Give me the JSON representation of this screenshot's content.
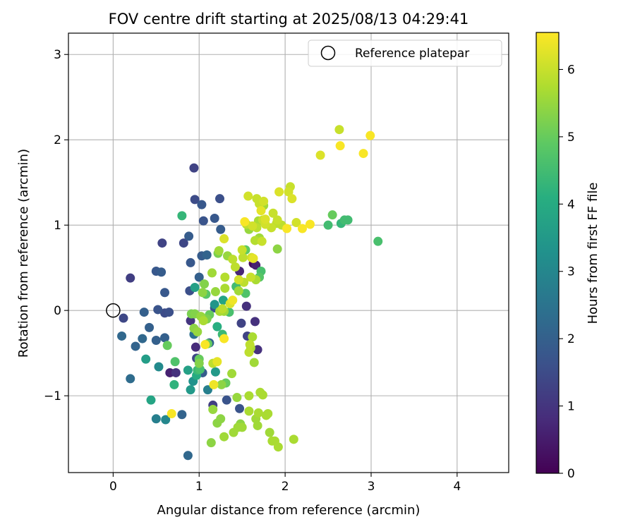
{
  "chart_data": {
    "type": "scatter",
    "title": "FOV centre drift starting at 2025/08/13 04:29:41",
    "xlabel": "Angular distance from reference (arcmin)",
    "ylabel": "Rotation from reference (arcmin)",
    "xlim": [
      -0.52,
      4.6
    ],
    "ylim": [
      -1.9,
      3.25
    ],
    "xticks": [
      0,
      1,
      2,
      3,
      4
    ],
    "yticks": [
      -1,
      0,
      1,
      2,
      3
    ],
    "grid": true,
    "legend": {
      "placement": "top-right",
      "entries": [
        "Reference platepar"
      ]
    },
    "reference_point": {
      "x": 0,
      "y": 0
    },
    "colorbar": {
      "label": "Hours from first FF file",
      "colormap": "viridis",
      "range": [
        0,
        6.55
      ],
      "ticks": [
        0,
        1,
        2,
        3,
        4,
        5,
        6
      ]
    },
    "points": [
      {
        "x": 0.12,
        "y": -0.09,
        "h": 1.4
      },
      {
        "x": 0.1,
        "y": -0.3,
        "h": 2.2
      },
      {
        "x": 0.2,
        "y": 0.38,
        "h": 1.2
      },
      {
        "x": 0.2,
        "y": -0.8,
        "h": 2.3
      },
      {
        "x": 0.26,
        "y": -0.42,
        "h": 2.1
      },
      {
        "x": 0.34,
        "y": -0.33,
        "h": 2.2
      },
      {
        "x": 0.36,
        "y": -0.02,
        "h": 2.0
      },
      {
        "x": 0.38,
        "y": -0.57,
        "h": 3.6
      },
      {
        "x": 0.42,
        "y": -0.2,
        "h": 2.0
      },
      {
        "x": 0.44,
        "y": -1.05,
        "h": 3.8
      },
      {
        "x": 0.5,
        "y": 0.46,
        "h": 1.8
      },
      {
        "x": 0.5,
        "y": -0.35,
        "h": 2.0
      },
      {
        "x": 0.5,
        "y": -1.27,
        "h": 2.8
      },
      {
        "x": 0.52,
        "y": 0.01,
        "h": 1.7
      },
      {
        "x": 0.53,
        "y": -0.66,
        "h": 3.1
      },
      {
        "x": 0.56,
        "y": 0.45,
        "h": 1.9
      },
      {
        "x": 0.57,
        "y": 0.79,
        "h": 1.3
      },
      {
        "x": 0.6,
        "y": 0.21,
        "h": 1.8
      },
      {
        "x": 0.6,
        "y": -0.03,
        "h": 1.5
      },
      {
        "x": 0.6,
        "y": -0.32,
        "h": 2.0
      },
      {
        "x": 0.61,
        "y": -1.28,
        "h": 3.0
      },
      {
        "x": 0.63,
        "y": -0.41,
        "h": 5.0
      },
      {
        "x": 0.65,
        "y": -0.02,
        "h": 1.6
      },
      {
        "x": 0.66,
        "y": -0.73,
        "h": 0.6
      },
      {
        "x": 0.68,
        "y": -1.21,
        "h": 6.5
      },
      {
        "x": 0.71,
        "y": -0.87,
        "h": 4.2
      },
      {
        "x": 0.72,
        "y": -0.6,
        "h": 4.7
      },
      {
        "x": 0.73,
        "y": -0.73,
        "h": 0.9
      },
      {
        "x": 0.8,
        "y": -1.22,
        "h": 2.1
      },
      {
        "x": 0.8,
        "y": 1.11,
        "h": 4.3
      },
      {
        "x": 0.82,
        "y": 0.79,
        "h": 1.4
      },
      {
        "x": 0.87,
        "y": -1.7,
        "h": 2.2
      },
      {
        "x": 0.87,
        "y": -0.7,
        "h": 3.7
      },
      {
        "x": 0.88,
        "y": 0.87,
        "h": 1.9
      },
      {
        "x": 0.89,
        "y": 0.23,
        "h": 1.6
      },
      {
        "x": 0.9,
        "y": 0.56,
        "h": 1.8
      },
      {
        "x": 0.9,
        "y": -0.93,
        "h": 3.5
      },
      {
        "x": 0.9,
        "y": -0.12,
        "h": 1.0
      },
      {
        "x": 0.91,
        "y": -0.04,
        "h": 5.2
      },
      {
        "x": 0.93,
        "y": -0.83,
        "h": 3.3
      },
      {
        "x": 0.94,
        "y": 1.67,
        "h": 1.3
      },
      {
        "x": 0.94,
        "y": -0.28,
        "h": 2.4
      },
      {
        "x": 0.94,
        "y": -0.21,
        "h": 5.4
      },
      {
        "x": 0.95,
        "y": -0.04,
        "h": 5.3
      },
      {
        "x": 0.95,
        "y": 0.27,
        "h": 3.7
      },
      {
        "x": 0.95,
        "y": 1.3,
        "h": 1.5
      },
      {
        "x": 0.96,
        "y": -0.43,
        "h": 0.8
      },
      {
        "x": 0.97,
        "y": -0.76,
        "h": 4.0
      },
      {
        "x": 0.97,
        "y": -0.56,
        "h": 1.4
      },
      {
        "x": 0.98,
        "y": -0.7,
        "h": 4.4
      },
      {
        "x": 0.98,
        "y": -0.25,
        "h": 5.5
      },
      {
        "x": 1.0,
        "y": 0.39,
        "h": 2.0
      },
      {
        "x": 1.0,
        "y": -0.62,
        "h": 5.3
      },
      {
        "x": 1.0,
        "y": -0.57,
        "h": 5.0
      },
      {
        "x": 1.01,
        "y": -0.69,
        "h": 4.6
      },
      {
        "x": 1.02,
        "y": -0.07,
        "h": 5.5
      },
      {
        "x": 1.03,
        "y": 1.24,
        "h": 1.8
      },
      {
        "x": 1.03,
        "y": 0.64,
        "h": 1.9
      },
      {
        "x": 1.04,
        "y": -0.73,
        "h": 1.9
      },
      {
        "x": 1.04,
        "y": 0.21,
        "h": 5.4
      },
      {
        "x": 1.05,
        "y": -0.12,
        "h": 5.7
      },
      {
        "x": 1.05,
        "y": 1.05,
        "h": 1.7
      },
      {
        "x": 1.06,
        "y": 0.31,
        "h": 5.3
      },
      {
        "x": 1.07,
        "y": -0.4,
        "h": 6.5
      },
      {
        "x": 1.08,
        "y": 0.19,
        "h": 4.8
      },
      {
        "x": 1.09,
        "y": -0.1,
        "h": 5.2
      },
      {
        "x": 1.09,
        "y": 0.65,
        "h": 2.1
      },
      {
        "x": 1.1,
        "y": -0.93,
        "h": 2.8
      },
      {
        "x": 1.1,
        "y": -0.39,
        "h": 5.0
      },
      {
        "x": 1.12,
        "y": -0.38,
        "h": 2.1
      },
      {
        "x": 1.12,
        "y": -0.05,
        "h": 5.0
      },
      {
        "x": 1.14,
        "y": -1.55,
        "h": 5.4
      },
      {
        "x": 1.15,
        "y": 0.44,
        "h": 5.6
      },
      {
        "x": 1.16,
        "y": -0.62,
        "h": 5.9
      },
      {
        "x": 1.16,
        "y": -1.11,
        "h": 1.2
      },
      {
        "x": 1.16,
        "y": -1.16,
        "h": 5.5
      },
      {
        "x": 1.17,
        "y": -0.87,
        "h": 6.4
      },
      {
        "x": 1.18,
        "y": 1.08,
        "h": 1.8
      },
      {
        "x": 1.18,
        "y": 0.03,
        "h": 1.7
      },
      {
        "x": 1.18,
        "y": 0.07,
        "h": 3.4
      },
      {
        "x": 1.19,
        "y": -0.72,
        "h": 3.5
      },
      {
        "x": 1.19,
        "y": 0.22,
        "h": 5.5
      },
      {
        "x": 1.21,
        "y": -0.6,
        "h": 6.3
      },
      {
        "x": 1.21,
        "y": -0.19,
        "h": 4.1
      },
      {
        "x": 1.21,
        "y": -1.32,
        "h": 5.4
      },
      {
        "x": 1.22,
        "y": 0.67,
        "h": 5.2
      },
      {
        "x": 1.23,
        "y": 0.7,
        "h": 5.6
      },
      {
        "x": 1.24,
        "y": 1.31,
        "h": 1.6
      },
      {
        "x": 1.24,
        "y": -0.01,
        "h": 5.7
      },
      {
        "x": 1.25,
        "y": 0.95,
        "h": 1.9
      },
      {
        "x": 1.25,
        "y": -1.27,
        "h": 5.4
      },
      {
        "x": 1.26,
        "y": -0.87,
        "h": 5.4
      },
      {
        "x": 1.27,
        "y": -0.28,
        "h": 4.4
      },
      {
        "x": 1.27,
        "y": 0.02,
        "h": 5.9
      },
      {
        "x": 1.28,
        "y": 0.12,
        "h": 3.8
      },
      {
        "x": 1.29,
        "y": 0.84,
        "h": 6.2
      },
      {
        "x": 1.29,
        "y": -1.48,
        "h": 5.6
      },
      {
        "x": 1.29,
        "y": -0.01,
        "h": 5.6
      },
      {
        "x": 1.29,
        "y": -0.33,
        "h": 6.5
      },
      {
        "x": 1.3,
        "y": 0.39,
        "h": 5.8
      },
      {
        "x": 1.3,
        "y": 0.26,
        "h": 5.7
      },
      {
        "x": 1.31,
        "y": -0.85,
        "h": 5.0
      },
      {
        "x": 1.32,
        "y": -1.05,
        "h": 1.7
      },
      {
        "x": 1.33,
        "y": 0.64,
        "h": 5.5
      },
      {
        "x": 1.35,
        "y": -0.02,
        "h": 4.6
      },
      {
        "x": 1.36,
        "y": 0.08,
        "h": 6.2
      },
      {
        "x": 1.38,
        "y": -0.74,
        "h": 5.6
      },
      {
        "x": 1.39,
        "y": 0.6,
        "h": 5.9
      },
      {
        "x": 1.39,
        "y": 0.12,
        "h": 6.4
      },
      {
        "x": 1.4,
        "y": -1.43,
        "h": 5.6
      },
      {
        "x": 1.42,
        "y": 0.51,
        "h": 5.9
      },
      {
        "x": 1.43,
        "y": 0.28,
        "h": 4.5
      },
      {
        "x": 1.44,
        "y": -1.02,
        "h": 5.5
      },
      {
        "x": 1.45,
        "y": -1.37,
        "h": 5.6
      },
      {
        "x": 1.46,
        "y": 0.36,
        "h": 6.1
      },
      {
        "x": 1.46,
        "y": 0.23,
        "h": 5.6
      },
      {
        "x": 1.47,
        "y": -1.15,
        "h": 1.7
      },
      {
        "x": 1.47,
        "y": 0.46,
        "h": 0.7
      },
      {
        "x": 1.48,
        "y": -1.33,
        "h": 5.4
      },
      {
        "x": 1.49,
        "y": -0.15,
        "h": 1.3
      },
      {
        "x": 1.5,
        "y": -1.37,
        "h": 5.6
      },
      {
        "x": 1.5,
        "y": 0.71,
        "h": 6.0
      },
      {
        "x": 1.51,
        "y": 0.62,
        "h": 5.9
      },
      {
        "x": 1.52,
        "y": 0.33,
        "h": 5.9
      },
      {
        "x": 1.53,
        "y": 1.04,
        "h": 6.5
      },
      {
        "x": 1.54,
        "y": 0.71,
        "h": 4.9
      },
      {
        "x": 1.54,
        "y": 0.2,
        "h": 4.7
      },
      {
        "x": 1.55,
        "y": 1.01,
        "h": 5.9
      },
      {
        "x": 1.55,
        "y": 0.05,
        "h": 0.9
      },
      {
        "x": 1.56,
        "y": -0.3,
        "h": 1.3
      },
      {
        "x": 1.57,
        "y": 1.34,
        "h": 6.1
      },
      {
        "x": 1.58,
        "y": 0.95,
        "h": 5.5
      },
      {
        "x": 1.58,
        "y": -0.49,
        "h": 5.9
      },
      {
        "x": 1.58,
        "y": -1.0,
        "h": 5.7
      },
      {
        "x": 1.58,
        "y": -1.18,
        "h": 5.7
      },
      {
        "x": 1.59,
        "y": -0.4,
        "h": 5.9
      },
      {
        "x": 1.6,
        "y": 0.39,
        "h": 6.0
      },
      {
        "x": 1.6,
        "y": -0.44,
        "h": 5.7
      },
      {
        "x": 1.61,
        "y": 0.62,
        "h": 6.1
      },
      {
        "x": 1.62,
        "y": 0.99,
        "h": 6.1
      },
      {
        "x": 1.62,
        "y": -0.31,
        "h": 5.7
      },
      {
        "x": 1.63,
        "y": 0.55,
        "h": 0.2
      },
      {
        "x": 1.63,
        "y": 0.61,
        "h": 6.3
      },
      {
        "x": 1.64,
        "y": -0.61,
        "h": 5.6
      },
      {
        "x": 1.65,
        "y": -0.13,
        "h": 0.9
      },
      {
        "x": 1.65,
        "y": 0.82,
        "h": 5.8
      },
      {
        "x": 1.66,
        "y": 0.36,
        "h": 5.7
      },
      {
        "x": 1.66,
        "y": -1.27,
        "h": 5.6
      },
      {
        "x": 1.66,
        "y": 0.53,
        "h": 0.6
      },
      {
        "x": 1.67,
        "y": 1.31,
        "h": 6.0
      },
      {
        "x": 1.67,
        "y": 0.97,
        "h": 5.9
      },
      {
        "x": 1.68,
        "y": -1.35,
        "h": 5.6
      },
      {
        "x": 1.68,
        "y": -0.46,
        "h": 0.9
      },
      {
        "x": 1.69,
        "y": 1.05,
        "h": 5.7
      },
      {
        "x": 1.69,
        "y": -1.2,
        "h": 5.7
      },
      {
        "x": 1.7,
        "y": 1.25,
        "h": 6.0
      },
      {
        "x": 1.7,
        "y": 0.85,
        "h": 5.6
      },
      {
        "x": 1.7,
        "y": 0.39,
        "h": 4.8
      },
      {
        "x": 1.71,
        "y": -0.96,
        "h": 5.7
      },
      {
        "x": 1.72,
        "y": 1.17,
        "h": 6.3
      },
      {
        "x": 1.72,
        "y": 0.46,
        "h": 4.6
      },
      {
        "x": 1.73,
        "y": 0.81,
        "h": 6.0
      },
      {
        "x": 1.74,
        "y": 1.06,
        "h": 6.0
      },
      {
        "x": 1.74,
        "y": -0.99,
        "h": 5.7
      },
      {
        "x": 1.75,
        "y": 1.23,
        "h": 5.6
      },
      {
        "x": 1.75,
        "y": 1.28,
        "h": 6.1
      },
      {
        "x": 1.77,
        "y": 1.01,
        "h": 6.1
      },
      {
        "x": 1.77,
        "y": 1.07,
        "h": 6.2
      },
      {
        "x": 1.78,
        "y": -1.23,
        "h": 5.7
      },
      {
        "x": 1.8,
        "y": -1.21,
        "h": 5.7
      },
      {
        "x": 1.82,
        "y": -1.43,
        "h": 5.6
      },
      {
        "x": 1.84,
        "y": 0.97,
        "h": 6.0
      },
      {
        "x": 1.85,
        "y": -1.53,
        "h": 5.7
      },
      {
        "x": 1.86,
        "y": 1.14,
        "h": 6.0
      },
      {
        "x": 1.88,
        "y": -1.53,
        "h": 5.7
      },
      {
        "x": 1.9,
        "y": 1.02,
        "h": 5.9
      },
      {
        "x": 1.91,
        "y": 0.72,
        "h": 5.4
      },
      {
        "x": 1.91,
        "y": 1.06,
        "h": 6.0
      },
      {
        "x": 1.92,
        "y": -1.6,
        "h": 5.7
      },
      {
        "x": 1.93,
        "y": 1.39,
        "h": 6.2
      },
      {
        "x": 1.96,
        "y": 1.0,
        "h": 5.9
      },
      {
        "x": 2.02,
        "y": 0.96,
        "h": 6.5
      },
      {
        "x": 2.04,
        "y": 1.39,
        "h": 6.1
      },
      {
        "x": 2.06,
        "y": 1.45,
        "h": 6.0
      },
      {
        "x": 2.08,
        "y": 1.31,
        "h": 6.2
      },
      {
        "x": 2.1,
        "y": -1.51,
        "h": 5.7
      },
      {
        "x": 2.13,
        "y": 1.03,
        "h": 6.1
      },
      {
        "x": 2.2,
        "y": 0.96,
        "h": 6.5
      },
      {
        "x": 2.29,
        "y": 1.01,
        "h": 6.5
      },
      {
        "x": 2.41,
        "y": 1.82,
        "h": 6.2
      },
      {
        "x": 2.5,
        "y": 1.0,
        "h": 4.5
      },
      {
        "x": 2.55,
        "y": 1.12,
        "h": 5.0
      },
      {
        "x": 2.63,
        "y": 2.12,
        "h": 6.0
      },
      {
        "x": 2.64,
        "y": 1.93,
        "h": 6.5
      },
      {
        "x": 2.65,
        "y": 1.02,
        "h": 4.3
      },
      {
        "x": 2.69,
        "y": 1.06,
        "h": 4.5
      },
      {
        "x": 2.73,
        "y": 1.06,
        "h": 4.5
      },
      {
        "x": 2.91,
        "y": 1.84,
        "h": 6.5
      },
      {
        "x": 2.99,
        "y": 2.05,
        "h": 6.5
      },
      {
        "x": 3.08,
        "y": 0.81,
        "h": 4.6
      }
    ]
  }
}
